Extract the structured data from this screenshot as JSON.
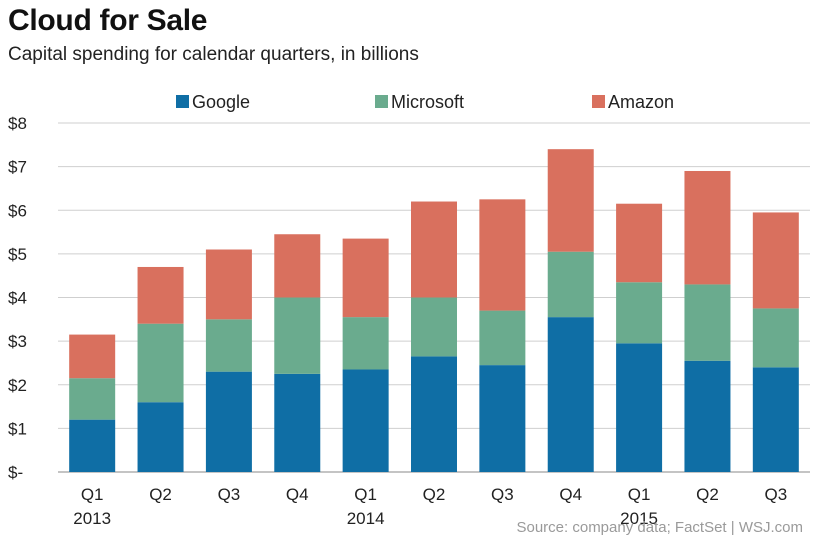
{
  "title": "Cloud for Sale",
  "subtitle": "Capital spending for calendar quarters, in billions",
  "source": "Source: company data; FactSet  |  WSJ.com",
  "colors": {
    "google": "#0f6ea5",
    "microsoft": "#6aab8e",
    "amazon": "#d9705e",
    "grid": "#cfcfcf"
  },
  "chart_data": {
    "type": "bar",
    "stacked": true,
    "title": "Cloud for Sale",
    "subtitle": "Capital spending for calendar quarters, in billions",
    "categories": [
      "Q1\n2013",
      "Q2",
      "Q3",
      "Q4",
      "Q1\n2014",
      "Q2",
      "Q3",
      "Q4",
      "Q1\n2015",
      "Q2",
      "Q3"
    ],
    "series": [
      {
        "name": "Google",
        "values": [
          1.2,
          1.6,
          2.3,
          2.25,
          2.35,
          2.65,
          2.45,
          3.55,
          2.95,
          2.55,
          2.4
        ]
      },
      {
        "name": "Microsoft",
        "values": [
          0.95,
          1.8,
          1.2,
          1.75,
          1.2,
          1.35,
          1.25,
          1.5,
          1.4,
          1.75,
          1.35
        ]
      },
      {
        "name": "Amazon",
        "values": [
          1.0,
          1.3,
          1.6,
          1.45,
          1.8,
          2.2,
          2.55,
          2.35,
          1.8,
          2.6,
          2.2
        ]
      }
    ],
    "ytick_labels": [
      "$-",
      "$1",
      "$2",
      "$3",
      "$4",
      "$5",
      "$6",
      "$7",
      "$8"
    ],
    "ylim": [
      0,
      8
    ],
    "legend": "top",
    "grid": true,
    "xlabel": "",
    "ylabel": ""
  }
}
